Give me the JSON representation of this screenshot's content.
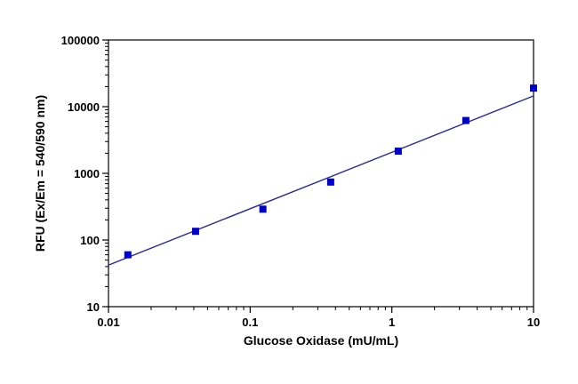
{
  "chart_data": {
    "type": "scatter",
    "xlabel": "Glucose Oxidase (mU/mL)",
    "ylabel": "RFU (Ex/Em = 540/590 nm)",
    "xscale": "log",
    "yscale": "log",
    "xlim": [
      0.01,
      10
    ],
    "ylim": [
      10,
      100000
    ],
    "x_ticks": [
      {
        "value": 0.01,
        "label": "0.01"
      },
      {
        "value": 0.1,
        "label": "0.1"
      },
      {
        "value": 1,
        "label": "1"
      },
      {
        "value": 10,
        "label": "10"
      }
    ],
    "y_ticks": [
      {
        "value": 10,
        "label": "10"
      },
      {
        "value": 100,
        "label": "100"
      },
      {
        "value": 1000,
        "label": "1000"
      },
      {
        "value": 10000,
        "label": "10000"
      },
      {
        "value": 100000,
        "label": "100000"
      }
    ],
    "grid": false,
    "series": [
      {
        "marker": "square",
        "color": "#0000cc",
        "x": [
          0.0137,
          0.0412,
          0.123,
          0.37,
          1.11,
          3.33,
          10
        ],
        "y": [
          60,
          135,
          290,
          740,
          2150,
          6200,
          19000
        ]
      }
    ],
    "fit_line": {
      "color": "#2a2a9a",
      "x": [
        0.01,
        10
      ],
      "y": [
        42,
        14500
      ]
    }
  }
}
